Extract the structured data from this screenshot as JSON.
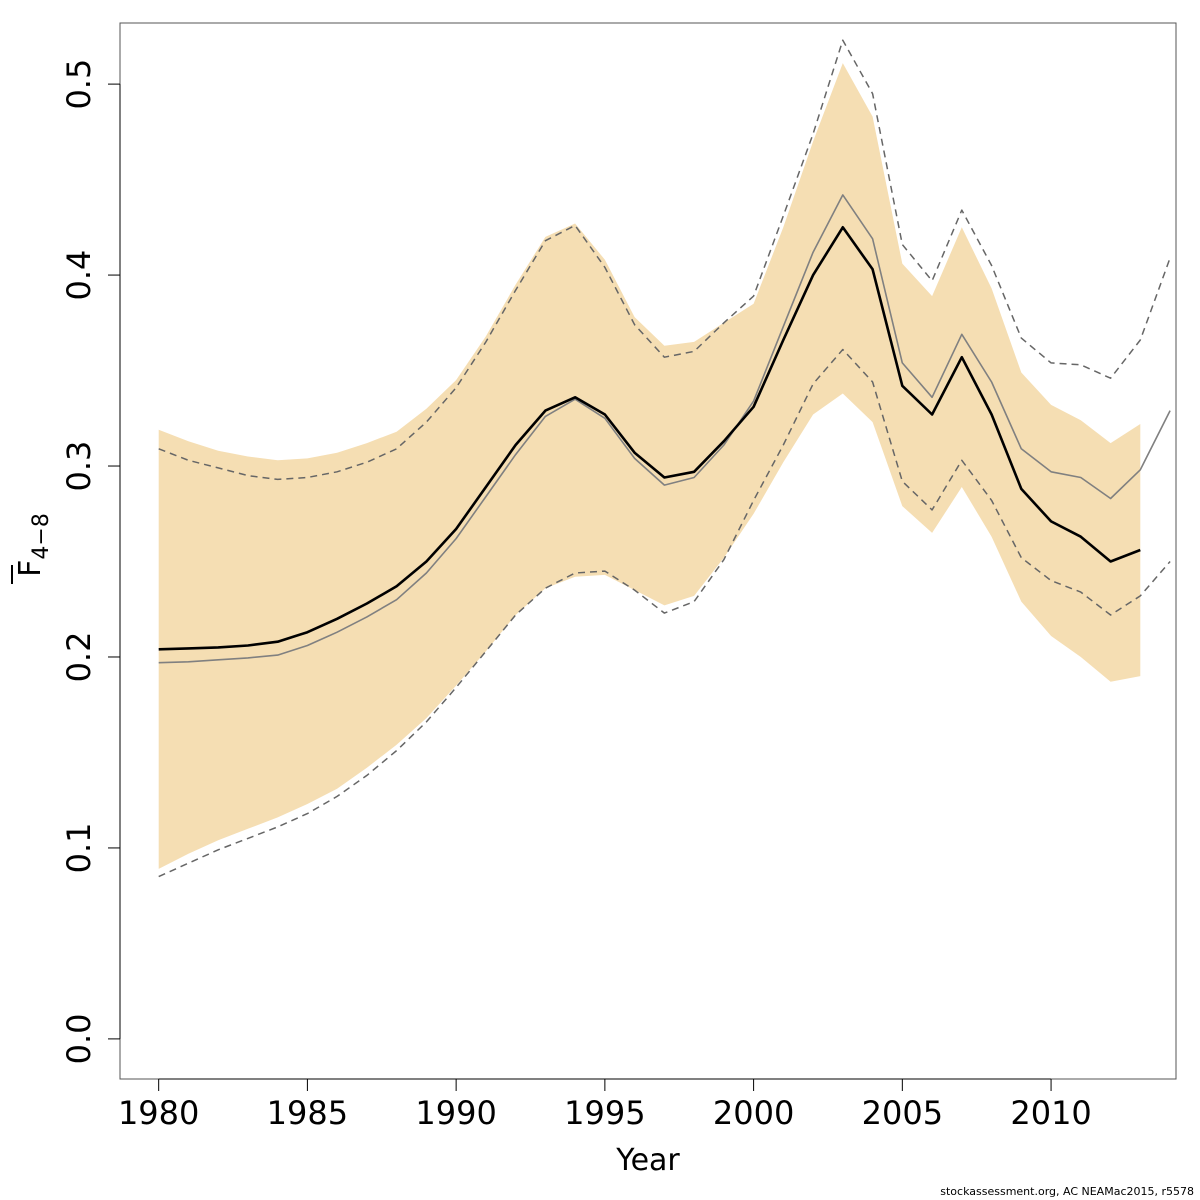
{
  "chart_data": {
    "type": "area",
    "xlabel": "Year",
    "ylabel": {
      "base": "F",
      "subscript": "4−8"
    },
    "xlim": [
      1978.7,
      2014.2
    ],
    "ylim": [
      -0.021,
      0.532
    ],
    "xticks": [
      "1980",
      "1985",
      "1990",
      "1995",
      "2000",
      "2005",
      "2010"
    ],
    "xtick_values": [
      1980,
      1985,
      1990,
      1995,
      2000,
      2005,
      2010
    ],
    "yticks": [
      "0.0",
      "0.1",
      "0.2",
      "0.3",
      "0.4",
      "0.5"
    ],
    "ytick_values": [
      0.0,
      0.1,
      0.2,
      0.3,
      0.4,
      0.5
    ],
    "colors": {
      "band": "#f5deb3",
      "estimate": "#000000",
      "reference": "#808080",
      "reference_ci": "#666666"
    },
    "band": {
      "x": [
        1980,
        1981,
        1982,
        1983,
        1984,
        1985,
        1986,
        1987,
        1988,
        1989,
        1990,
        1991,
        1992,
        1993,
        1994,
        1995,
        1996,
        1997,
        1998,
        1999,
        2000,
        2001,
        2002,
        2003,
        2004,
        2005,
        2006,
        2007,
        2008,
        2009,
        2010,
        2011,
        2012,
        2013
      ],
      "lower": [
        0.089,
        0.097,
        0.104,
        0.11,
        0.116,
        0.123,
        0.131,
        0.142,
        0.154,
        0.168,
        0.185,
        0.203,
        0.222,
        0.236,
        0.242,
        0.243,
        0.235,
        0.227,
        0.232,
        0.252,
        0.275,
        0.302,
        0.327,
        0.338,
        0.323,
        0.279,
        0.265,
        0.289,
        0.263,
        0.229,
        0.211,
        0.2,
        0.187,
        0.19
      ],
      "upper": [
        0.319,
        0.313,
        0.308,
        0.305,
        0.303,
        0.304,
        0.307,
        0.312,
        0.318,
        0.33,
        0.345,
        0.368,
        0.395,
        0.42,
        0.427,
        0.408,
        0.378,
        0.363,
        0.365,
        0.375,
        0.385,
        0.425,
        0.47,
        0.511,
        0.483,
        0.406,
        0.389,
        0.425,
        0.393,
        0.349,
        0.332,
        0.324,
        0.312,
        0.322
      ]
    },
    "series": [
      {
        "x": [
          1980,
          1981,
          1982,
          1983,
          1984,
          1985,
          1986,
          1987,
          1988,
          1989,
          1990,
          1991,
          1992,
          1993,
          1994,
          1995,
          1996,
          1997,
          1998,
          1999,
          2000,
          2001,
          2002,
          2003,
          2004,
          2005,
          2006,
          2007,
          2008,
          2009,
          2010,
          2011,
          2012,
          2013
        ],
        "values": [
          0.204,
          0.2045,
          0.205,
          0.206,
          0.208,
          0.213,
          0.22,
          0.228,
          0.237,
          0.25,
          0.267,
          0.289,
          0.311,
          0.329,
          0.336,
          0.327,
          0.307,
          0.294,
          0.297,
          0.313,
          0.331,
          0.366,
          0.4,
          0.425,
          0.403,
          0.342,
          0.327,
          0.357,
          0.327,
          0.288,
          0.271,
          0.263,
          0.25,
          0.256
        ],
        "style": "estimate"
      },
      {
        "x": [
          1980,
          1981,
          1982,
          1983,
          1984,
          1985,
          1986,
          1987,
          1988,
          1989,
          1990,
          1991,
          1992,
          1993,
          1994,
          1995,
          1996,
          1997,
          1998,
          1999,
          2000,
          2001,
          2002,
          2003,
          2004,
          2005,
          2006,
          2007,
          2008,
          2009,
          2010,
          2011,
          2012,
          2013,
          2014
        ],
        "values": [
          0.197,
          0.1975,
          0.1985,
          0.1995,
          0.201,
          0.206,
          0.213,
          0.221,
          0.23,
          0.244,
          0.262,
          0.284,
          0.306,
          0.326,
          0.335,
          0.325,
          0.304,
          0.29,
          0.294,
          0.311,
          0.334,
          0.373,
          0.412,
          0.442,
          0.419,
          0.354,
          0.336,
          0.369,
          0.344,
          0.309,
          0.297,
          0.294,
          0.283,
          0.298,
          0.329
        ],
        "style": "reference"
      },
      {
        "x": [
          1980,
          1981,
          1982,
          1983,
          1984,
          1985,
          1986,
          1987,
          1988,
          1989,
          1990,
          1991,
          1992,
          1993,
          1994,
          1995,
          1996,
          1997,
          1998,
          1999,
          2000,
          2001,
          2002,
          2003,
          2004,
          2005,
          2006,
          2007,
          2008,
          2009,
          2010,
          2011,
          2012,
          2013,
          2014
        ],
        "values": [
          0.309,
          0.303,
          0.299,
          0.295,
          0.293,
          0.294,
          0.297,
          0.302,
          0.309,
          0.323,
          0.341,
          0.365,
          0.392,
          0.418,
          0.426,
          0.404,
          0.374,
          0.357,
          0.36,
          0.375,
          0.389,
          0.431,
          0.474,
          0.523,
          0.495,
          0.416,
          0.397,
          0.434,
          0.405,
          0.367,
          0.354,
          0.353,
          0.346,
          0.366,
          0.409
        ],
        "style": "reference-ci"
      },
      {
        "x": [
          1980,
          1981,
          1982,
          1983,
          1984,
          1985,
          1986,
          1987,
          1988,
          1989,
          1990,
          1991,
          1992,
          1993,
          1994,
          1995,
          1996,
          1997,
          1998,
          1999,
          2000,
          2001,
          2002,
          2003,
          2004,
          2005,
          2006,
          2007,
          2008,
          2009,
          2010,
          2011,
          2012,
          2013,
          2014
        ],
        "values": [
          0.085,
          0.092,
          0.099,
          0.105,
          0.111,
          0.118,
          0.127,
          0.138,
          0.151,
          0.166,
          0.184,
          0.203,
          0.222,
          0.236,
          0.244,
          0.245,
          0.235,
          0.223,
          0.229,
          0.251,
          0.282,
          0.311,
          0.343,
          0.361,
          0.344,
          0.292,
          0.277,
          0.303,
          0.282,
          0.252,
          0.24,
          0.234,
          0.222,
          0.232,
          0.25
        ],
        "style": "reference-ci"
      }
    ]
  },
  "footer": {
    "text": "stockassessment.org, AC  NEAMac2015, r5578"
  }
}
